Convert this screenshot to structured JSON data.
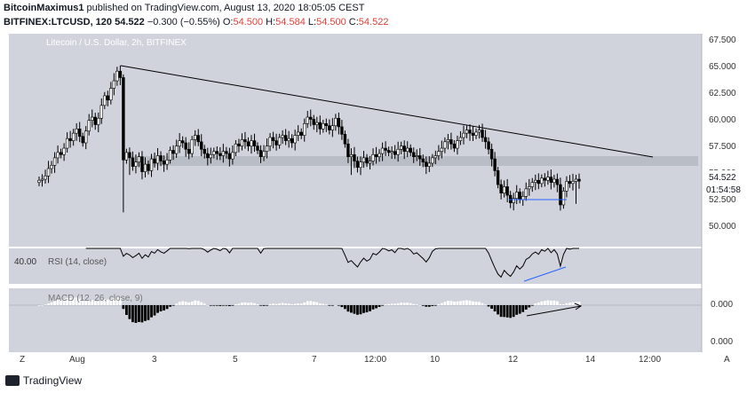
{
  "header": {
    "author": "BitcoinMaximus1",
    "published_text": "published on TradingView.com, August 13, 2020 18:05:05 CEST",
    "symbol": "BITFINEX:LTCUSD, 120",
    "last_price": "54.522",
    "change": "−0.300 (−0.55%)",
    "open_label": "O:",
    "open": "54.500",
    "high_label": "H:",
    "high": "54.584",
    "low_label": "L:",
    "low": "54.500",
    "close_label": "C:",
    "close": "54.522"
  },
  "chart_title": "Litecoin / U.S. Dollar, 2h, BITFINEX",
  "price_badge": "54.522",
  "countdown": "01:54:58",
  "rsi_label": "RSI (14, close)",
  "rsi_level": "40.00",
  "macd_label": "MACD (12, 26, close, 9)",
  "footer": {
    "brand": "TradingView",
    "z_button": "Z",
    "a_button": "A"
  },
  "colors": {
    "pane_bg": "#d0d3dc",
    "accent": "#2962ff",
    "badge_bg": "#ffffff"
  },
  "chart_data": {
    "type": "candlestick",
    "price_axis": {
      "labels": [
        "67.500",
        "65.000",
        "62.500",
        "60.000",
        "57.500",
        "55.000",
        "52.500",
        "50.000"
      ],
      "range": [
        48.4,
        68.3
      ]
    },
    "macd_axis": {
      "labels": [
        "0.000",
        "0.000"
      ]
    },
    "x_ticks": [
      "Aug",
      "3",
      "5",
      "7",
      "12:00",
      "10",
      "12",
      "14",
      "12:00"
    ],
    "close": [
      54.6,
      54.7,
      55.0,
      55.7,
      56.0,
      56.7,
      57.2,
      57.0,
      57.6,
      58.5,
      58.3,
      59.0,
      59.4,
      58.7,
      58.1,
      59.2,
      60.2,
      60.5,
      59.8,
      60.4,
      61.6,
      62.5,
      62.1,
      63.2,
      63.9,
      64.8,
      64.2,
      56.5,
      57.2,
      56.7,
      55.9,
      56.3,
      56.8,
      55.4,
      56.1,
      55.5,
      56.6,
      56.2,
      56.9,
      56.4,
      56.1,
      56.5,
      57.4,
      57.1,
      57.8,
      58.3,
      58.1,
      57.5,
      57.1,
      58.4,
      58.8,
      58.2,
      57.5,
      57.1,
      56.7,
      57.0,
      57.3,
      57.1,
      56.9,
      57.3,
      57.1,
      56.6,
      57.2,
      58.0,
      57.8,
      58.4,
      58.2,
      57.8,
      58.3,
      57.8,
      57.4,
      56.8,
      57.3,
      57.8,
      58.6,
      58.3,
      57.9,
      58.6,
      58.8,
      58.3,
      58.5,
      58.1,
      58.8,
      59.1,
      58.8,
      59.9,
      60.5,
      60.3,
      59.8,
      60.0,
      59.4,
      59.9,
      59.7,
      59.3,
      59.7,
      60.4,
      59.6,
      58.9,
      58.0,
      56.8,
      57.0,
      56.4,
      55.8,
      56.3,
      56.7,
      56.2,
      56.4,
      57.0,
      56.8,
      57.1,
      57.6,
      57.4,
      57.2,
      57.3,
      57.0,
      57.5,
      57.8,
      57.3,
      57.6,
      57.2,
      56.8,
      56.9,
      56.6,
      56.3,
      55.9,
      56.2,
      56.7,
      56.9,
      57.3,
      57.6,
      58.2,
      58.4,
      58.0,
      57.6,
      58.3,
      58.6,
      59.0,
      59.3,
      59.0,
      58.8,
      59.1,
      59.3,
      58.6,
      58.2,
      57.5,
      56.6,
      55.5,
      54.2,
      53.4,
      54.0,
      53.2,
      52.5,
      52.9,
      53.5,
      52.8,
      53.1,
      53.8,
      54.0,
      54.4,
      54.6,
      54.3,
      54.8,
      54.6,
      54.9,
      54.4,
      54.7,
      54.2,
      52.3,
      53.6,
      54.5,
      54.3,
      54.5,
      54.7,
      54.52
    ],
    "key_levels": {
      "resistance_zone": [
        55.6,
        56.6
      ],
      "descending_trendline": [
        [
          65.2,
          "Aug 2"
        ],
        [
          56.3,
          "Aug 13 12:00"
        ]
      ]
    },
    "rsi": {
      "period": 14,
      "level": 40
    },
    "macd": {
      "fast": 12,
      "slow": 26,
      "signal": 9
    }
  }
}
